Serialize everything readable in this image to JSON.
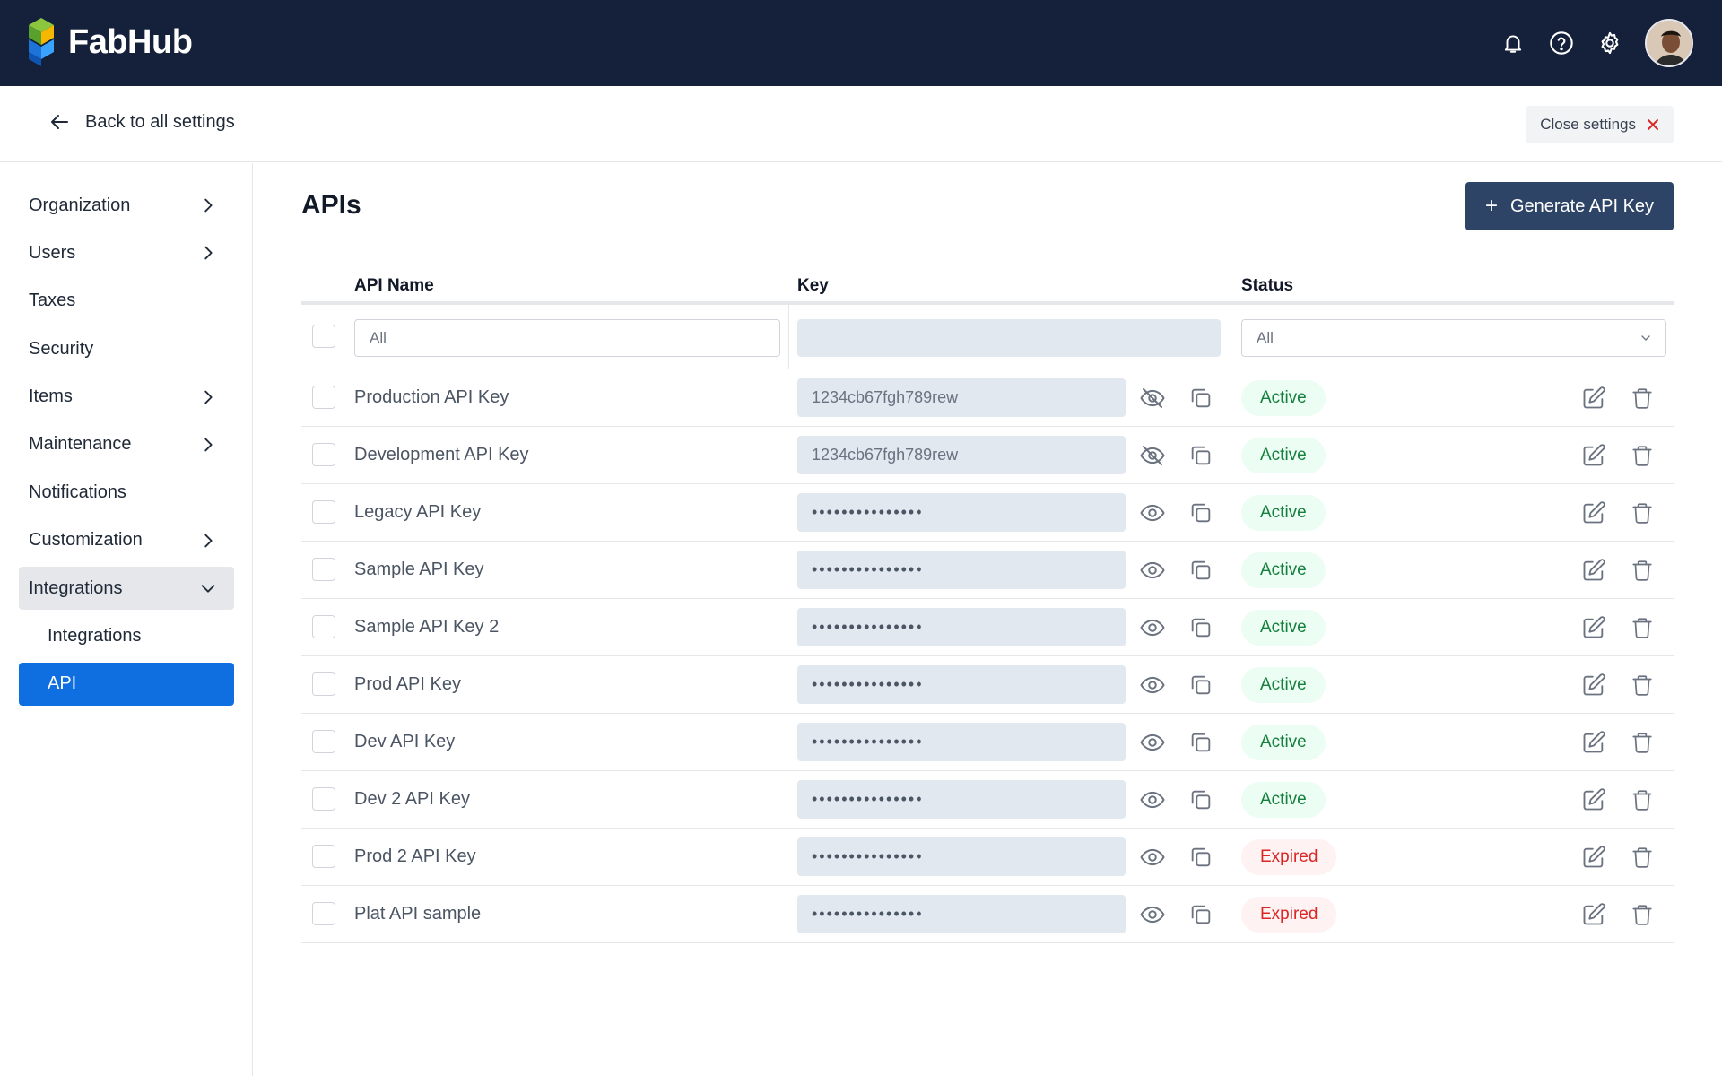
{
  "app": {
    "name": "FabHub"
  },
  "header": {
    "icons": [
      "bell-icon",
      "help-icon",
      "gear-icon"
    ]
  },
  "subheader": {
    "back_label": "Back to all settings",
    "close_label": "Close settings"
  },
  "sidebar": {
    "items": [
      {
        "label": "Organization",
        "chevron": "right"
      },
      {
        "label": "Users",
        "chevron": "right"
      },
      {
        "label": "Taxes",
        "chevron": ""
      },
      {
        "label": "Security",
        "chevron": ""
      },
      {
        "label": "Items",
        "chevron": "right"
      },
      {
        "label": "Maintenance",
        "chevron": "right"
      },
      {
        "label": "Notifications",
        "chevron": ""
      },
      {
        "label": "Customization",
        "chevron": "right"
      },
      {
        "label": "Integrations",
        "chevron": "down"
      },
      {
        "label": "Integrations",
        "chevron": ""
      },
      {
        "label": "API",
        "chevron": ""
      }
    ]
  },
  "main": {
    "title": "APIs",
    "generate_label": "Generate API Key",
    "columns": {
      "name": "API Name",
      "key": "Key",
      "status": "Status"
    },
    "filters": {
      "name_placeholder": "All",
      "status_value": "All"
    },
    "rows": [
      {
        "name": "Production API Key",
        "key": "1234cb67fgh789rew",
        "visible": true,
        "status": "Active"
      },
      {
        "name": "Development API Key",
        "key": "1234cb67fgh789rew",
        "visible": true,
        "status": "Active"
      },
      {
        "name": "Legacy API Key",
        "key": "•••••••••••••••",
        "visible": false,
        "status": "Active"
      },
      {
        "name": "Sample API Key",
        "key": "•••••••••••••••",
        "visible": false,
        "status": "Active"
      },
      {
        "name": "Sample API Key 2",
        "key": "•••••••••••••••",
        "visible": false,
        "status": "Active"
      },
      {
        "name": "Prod API Key",
        "key": "•••••••••••••••",
        "visible": false,
        "status": "Active"
      },
      {
        "name": "Dev API Key",
        "key": "•••••••••••••••",
        "visible": false,
        "status": "Active"
      },
      {
        "name": "Dev 2 API Key",
        "key": "•••••••••••••••",
        "visible": false,
        "status": "Active"
      },
      {
        "name": "Prod 2 API Key",
        "key": "•••••••••••••••",
        "visible": false,
        "status": "Expired"
      },
      {
        "name": "Plat API sample",
        "key": "•••••••••••••••",
        "visible": false,
        "status": "Expired"
      }
    ]
  },
  "colors": {
    "topbar": "#15203a",
    "primary_button": "#2e4466",
    "active_nav": "#0f6fe0",
    "status_active": "#15803d",
    "status_expired": "#dc2626"
  }
}
